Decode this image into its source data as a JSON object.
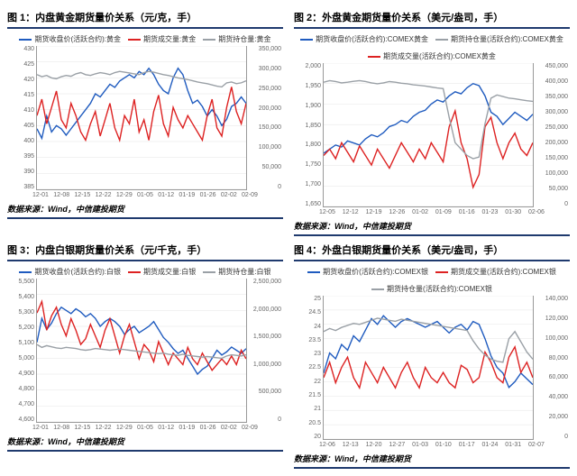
{
  "source_text": "数据来源：Wind，中信建投期货",
  "colors": {
    "blue": "#1f5bbf",
    "red": "#d22",
    "gray": "#9aa0a6",
    "rule": "#1f3a6e",
    "grid": "#e3e3e3"
  },
  "charts": [
    {
      "title": "图 1：内盘黄金期货量价关系（元/克，手）",
      "legend": [
        {
          "label": "期货收盘价(活跃合约):黄金",
          "color": "#1f5bbf"
        },
        {
          "label": "期货成交量:黄金",
          "color": "#d22"
        },
        {
          "label": "期货持仓量:黄金",
          "color": "#9aa0a6"
        }
      ],
      "y_left": {
        "min": 385,
        "max": 430,
        "ticks": [
          430,
          425,
          420,
          415,
          410,
          405,
          400,
          395,
          390,
          385
        ]
      },
      "y_right": {
        "min": 0,
        "max": 350000,
        "ticks": [
          350000,
          300000,
          250000,
          200000,
          150000,
          100000,
          50000,
          0
        ]
      },
      "x_ticks": [
        "12-01",
        "12-08",
        "12-15",
        "12-22",
        "12-29",
        "01-05",
        "01-12",
        "01-19",
        "01-26",
        "02-02",
        "02-09"
      ],
      "series": [
        {
          "color": "#1f5bbf",
          "axis": "left",
          "values": [
            404,
            401,
            408,
            403,
            405,
            404,
            402,
            404,
            406,
            408,
            410,
            412,
            415,
            414,
            416,
            418,
            417,
            419,
            420,
            421,
            420,
            422,
            421,
            423,
            421,
            418,
            416,
            415,
            420,
            423,
            421,
            416,
            412,
            413,
            411,
            408,
            410,
            408,
            405,
            407,
            411,
            412,
            414,
            412
          ]
        },
        {
          "color": "#d22",
          "axis": "right",
          "values": [
            180000,
            220000,
            160000,
            200000,
            240000,
            170000,
            150000,
            210000,
            180000,
            140000,
            120000,
            160000,
            190000,
            130000,
            170000,
            210000,
            150000,
            120000,
            180000,
            160000,
            220000,
            140000,
            170000,
            120000,
            190000,
            230000,
            160000,
            130000,
            200000,
            170000,
            150000,
            180000,
            160000,
            140000,
            120000,
            180000,
            220000,
            150000,
            130000,
            200000,
            250000,
            190000,
            160000,
            210000
          ]
        },
        {
          "color": "#9aa0a6",
          "axis": "right",
          "values": [
            280000,
            275000,
            278000,
            272000,
            270000,
            275000,
            278000,
            276000,
            282000,
            285000,
            280000,
            278000,
            282000,
            285000,
            283000,
            280000,
            285000,
            288000,
            286000,
            284000,
            282000,
            280000,
            285000,
            288000,
            286000,
            283000,
            280000,
            278000,
            275000,
            272000,
            270000,
            268000,
            265000,
            262000,
            260000,
            258000,
            255000,
            252000,
            250000,
            260000,
            262000,
            258000,
            260000,
            265000
          ]
        }
      ]
    },
    {
      "title": "图 2：外盘黄金期货量价关系（美元/盎司，手）",
      "legend": [
        {
          "label": "期货收盘价(活跃合约):COMEX黄金",
          "color": "#1f5bbf"
        },
        {
          "label": "期货持仓量(活跃合约):COMEX黄金",
          "color": "#9aa0a6"
        },
        {
          "label": "期货成交量(活跃合约):COMEX黄金",
          "color": "#d22"
        }
      ],
      "y_left": {
        "min": 1650,
        "max": 2000,
        "ticks": [
          2000,
          1950,
          1900,
          1850,
          1800,
          1750,
          1700,
          1650
        ]
      },
      "y_right": {
        "min": 0,
        "max": 450000,
        "ticks": [
          450000,
          400000,
          350000,
          300000,
          250000,
          200000,
          150000,
          100000,
          50000,
          0
        ]
      },
      "x_ticks": [
        "12-05",
        "12-12",
        "12-19",
        "12-26",
        "01-02",
        "01-09",
        "01-16",
        "01-23",
        "01-30",
        "02-06"
      ],
      "series": [
        {
          "color": "#1f5bbf",
          "axis": "left",
          "values": [
            1780,
            1790,
            1800,
            1795,
            1810,
            1805,
            1800,
            1815,
            1825,
            1820,
            1830,
            1845,
            1850,
            1860,
            1855,
            1870,
            1880,
            1885,
            1900,
            1910,
            1905,
            1920,
            1930,
            1925,
            1940,
            1950,
            1945,
            1920,
            1880,
            1870,
            1850,
            1865,
            1880,
            1870,
            1860,
            1875
          ]
        },
        {
          "color": "#d22",
          "axis": "right",
          "values": [
            160000,
            180000,
            150000,
            200000,
            170000,
            140000,
            190000,
            160000,
            130000,
            180000,
            150000,
            120000,
            160000,
            200000,
            170000,
            140000,
            180000,
            150000,
            200000,
            170000,
            140000,
            250000,
            300000,
            200000,
            150000,
            60000,
            100000,
            250000,
            280000,
            200000,
            150000,
            200000,
            230000,
            180000,
            160000,
            200000
          ]
        },
        {
          "color": "#9aa0a6",
          "axis": "right",
          "values": [
            390000,
            395000,
            392000,
            388000,
            390000,
            393000,
            395000,
            392000,
            388000,
            385000,
            388000,
            392000,
            390000,
            387000,
            385000,
            382000,
            380000,
            378000,
            375000,
            372000,
            370000,
            280000,
            200000,
            180000,
            160000,
            150000,
            155000,
            260000,
            340000,
            350000,
            345000,
            340000,
            338000,
            335000,
            332000,
            330000
          ]
        }
      ]
    },
    {
      "title": "图 3：内盘白银期货量价关系（元/千克，手）",
      "legend": [
        {
          "label": "期货收盘价(活跃合约):白银",
          "color": "#1f5bbf"
        },
        {
          "label": "期货成交量:白银",
          "color": "#d22"
        },
        {
          "label": "期货持仓量:白银",
          "color": "#9aa0a6"
        }
      ],
      "y_left": {
        "min": 4600,
        "max": 5500,
        "ticks": [
          5500,
          5400,
          5300,
          5200,
          5100,
          5000,
          4900,
          4800,
          4700,
          4600
        ]
      },
      "y_right": {
        "min": 0,
        "max": 2500000,
        "ticks": [
          2500000,
          2000000,
          1500000,
          1000000,
          500000,
          0
        ]
      },
      "x_ticks": [
        "12-01",
        "12-08",
        "12-15",
        "12-22",
        "12-29",
        "01-05",
        "01-12",
        "01-19",
        "01-26",
        "02-02",
        "02-09"
      ],
      "series": [
        {
          "color": "#1f5bbf",
          "axis": "left",
          "values": [
            5100,
            5250,
            5180,
            5220,
            5280,
            5320,
            5300,
            5280,
            5310,
            5290,
            5260,
            5280,
            5250,
            5200,
            5230,
            5250,
            5230,
            5200,
            5150,
            5180,
            5200,
            5160,
            5180,
            5200,
            5230,
            5180,
            5130,
            5100,
            5060,
            5030,
            5050,
            5000,
            4950,
            4900,
            4930,
            4950,
            5000,
            5050,
            5020,
            5040,
            5070,
            5050,
            5030,
            5060
          ]
        },
        {
          "color": "#d22",
          "axis": "right",
          "values": [
            1900000,
            2100000,
            1600000,
            1850000,
            2000000,
            1700000,
            1500000,
            1800000,
            1600000,
            1350000,
            1450000,
            1700000,
            1500000,
            1300000,
            1600000,
            1800000,
            1500000,
            1200000,
            1500000,
            1700000,
            1400000,
            1100000,
            1350000,
            1250000,
            1050000,
            1400000,
            1200000,
            1000000,
            1200000,
            1100000,
            1000000,
            1300000,
            1100000,
            1000000,
            1200000,
            1050000,
            900000,
            1000000,
            1100000,
            1000000,
            1150000,
            1000000,
            1250000,
            1100000
          ]
        },
        {
          "color": "#9aa0a6",
          "axis": "right",
          "values": [
            1350000,
            1300000,
            1330000,
            1310000,
            1290000,
            1280000,
            1300000,
            1290000,
            1280000,
            1260000,
            1250000,
            1260000,
            1280000,
            1270000,
            1260000,
            1250000,
            1260000,
            1270000,
            1260000,
            1250000,
            1240000,
            1230000,
            1220000,
            1210000,
            1200000,
            1190000,
            1200000,
            1180000,
            1170000,
            1160000,
            1180000,
            1160000,
            1150000,
            1140000,
            1130000,
            1140000,
            1130000,
            1120000,
            1110000,
            1150000,
            1170000,
            1160000,
            1150000,
            1170000
          ]
        }
      ]
    },
    {
      "title": "图 4：外盘白银期货量价关系（美元/盎司，手）",
      "legend": [
        {
          "label": "期货收盘价(活跃合约):COMEX银",
          "color": "#1f5bbf"
        },
        {
          "label": "期货成交量(活跃合约):COMEX银",
          "color": "#d22"
        },
        {
          "label": "期货持仓量(活跃合约):COMEX银",
          "color": "#9aa0a6"
        }
      ],
      "y_left": {
        "min": 20,
        "max": 25,
        "ticks": [
          25,
          "24.5",
          24,
          "23.5",
          23,
          "22.5",
          22,
          "21.5",
          21,
          "20.5",
          20
        ]
      },
      "y_right": {
        "min": 0,
        "max": 140000,
        "ticks": [
          140000,
          120000,
          100000,
          80000,
          60000,
          40000,
          20000,
          0
        ]
      },
      "x_ticks": [
        "12-06",
        "12-13",
        "12-20",
        "12-27",
        "01-03",
        "01-10",
        "01-17",
        "01-24",
        "01-31",
        "02-07"
      ],
      "series": [
        {
          "color": "#1f5bbf",
          "axis": "left",
          "values": [
            22.3,
            23.0,
            22.8,
            23.3,
            23.1,
            23.6,
            23.4,
            23.8,
            24.2,
            24.0,
            24.3,
            24.1,
            23.9,
            24.1,
            24.2,
            24.1,
            24.0,
            23.9,
            24.0,
            24.1,
            23.9,
            23.7,
            23.9,
            24.0,
            23.8,
            24.1,
            24.0,
            23.5,
            22.9,
            22.5,
            22.3,
            21.8,
            22.0,
            22.3,
            22.1,
            21.9
          ]
        },
        {
          "color": "#d22",
          "axis": "right",
          "values": [
            60000,
            75000,
            55000,
            70000,
            80000,
            60000,
            50000,
            75000,
            65000,
            55000,
            70000,
            60000,
            50000,
            65000,
            75000,
            60000,
            50000,
            70000,
            60000,
            55000,
            65000,
            55000,
            50000,
            72000,
            68000,
            55000,
            60000,
            85000,
            75000,
            60000,
            55000,
            80000,
            90000,
            65000,
            75000,
            60000
          ]
        },
        {
          "color": "#9aa0a6",
          "axis": "right",
          "values": [
            105000,
            108000,
            106000,
            109000,
            111000,
            113000,
            112000,
            114000,
            116000,
            118000,
            117000,
            116000,
            115000,
            117000,
            116000,
            115000,
            114000,
            113000,
            112000,
            111000,
            110000,
            109000,
            108000,
            107000,
            106000,
            96000,
            88000,
            82000,
            78000,
            76000,
            75000,
            98000,
            105000,
            95000,
            85000,
            78000
          ]
        }
      ]
    }
  ]
}
